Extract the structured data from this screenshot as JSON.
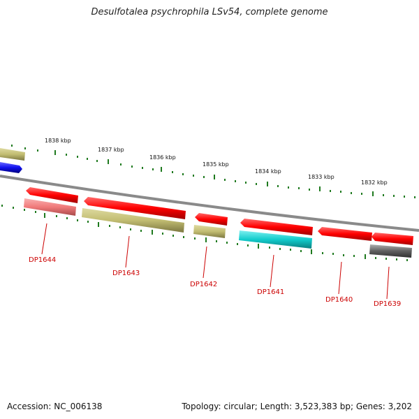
{
  "title": "Desulfotalea psychrophila LSv54, complete genome",
  "footer": {
    "accession": "Accession: NC_006138",
    "summary": "Topology: circular; Length: 3,523,383 bp; Genes: 3,202"
  },
  "colors": {
    "backbone": "#8a8a8a",
    "tick": "#1f7a1f",
    "red": "#ff0000",
    "pink": "#f07a7a",
    "olive": "#c2bd72",
    "cyan": "#12cccc",
    "blue": "#1010ee",
    "gray": "#606060",
    "label": "#cc0000"
  },
  "scale": {
    "labels": [
      "1838 kbp",
      "1837 kbp",
      "1836 kbp",
      "1835 kbp",
      "1834 kbp",
      "1833 kbp",
      "1832 kbp"
    ]
  },
  "genes": [
    {
      "name": "DP1644",
      "kind": "label"
    },
    {
      "name": "DP1643",
      "kind": "label"
    },
    {
      "name": "DP1642",
      "kind": "label"
    },
    {
      "name": "DP1641",
      "kind": "label"
    },
    {
      "name": "DP1640",
      "kind": "label"
    },
    {
      "name": "DP1639",
      "kind": "label"
    }
  ]
}
